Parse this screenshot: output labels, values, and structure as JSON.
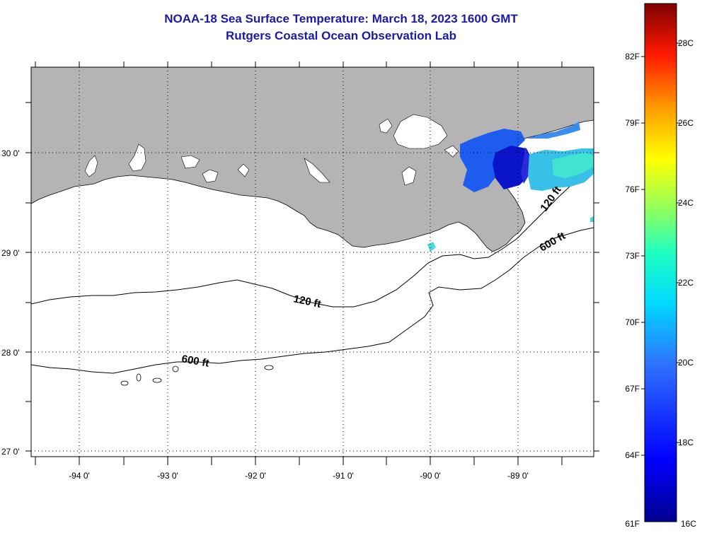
{
  "title": {
    "line1": "NOAA-18 Sea Surface Temperature:  March 18, 2023 1600 GMT",
    "line2": "Rutgers Coastal Ocean Observation Lab"
  },
  "map": {
    "lat_labels": [
      "30 0'",
      "29 0'",
      "28 0'",
      "27 0'"
    ],
    "lon_labels": [
      "-94 0'",
      "-93 0'",
      "-92 0'",
      "-91 0'",
      "-90 0'",
      "-89 0'"
    ],
    "contour_labels": {
      "c120_west": "120 ft",
      "c120_east": "120 ft",
      "c600_west": "600 ft",
      "c600_east": "600 ft"
    },
    "land_color": "#b4b4b4",
    "water_color": "#ffffff"
  },
  "colorbar": {
    "fahrenheit_labels": [
      "82F",
      "79F",
      "76F",
      "73F",
      "70F",
      "67F",
      "64F",
      "61F"
    ],
    "celsius_labels": [
      "28C",
      "26C",
      "24C",
      "22C",
      "20C",
      "18C",
      "16C"
    ]
  }
}
